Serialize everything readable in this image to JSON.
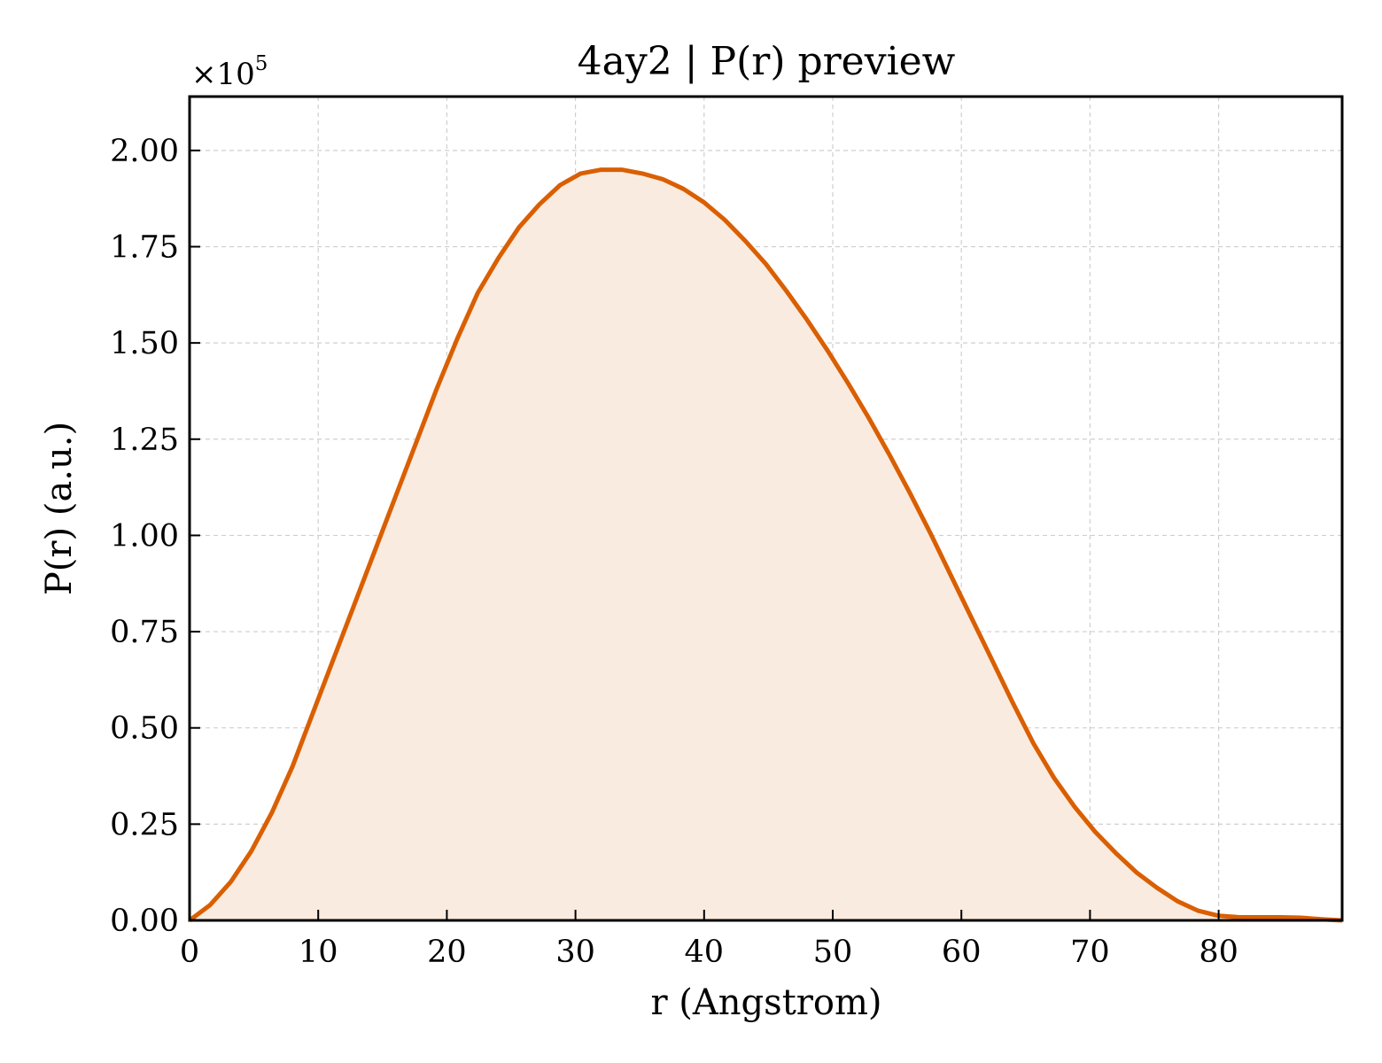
{
  "chart_data": {
    "type": "area",
    "title": "4ay2 | P(r) preview",
    "xlabel": "r (Angstrom)",
    "ylabel": "P(r) (a.u.)",
    "y_offset_prefix": "×10",
    "y_offset_exponent": "5",
    "y_multiplier": 100000,
    "xlim": [
      0,
      89.6
    ],
    "ylim": [
      0,
      2.14
    ],
    "x_ticks": [
      0,
      10,
      20,
      30,
      40,
      50,
      60,
      70,
      80
    ],
    "x_tick_labels": [
      "0",
      "10",
      "20",
      "30",
      "40",
      "50",
      "60",
      "70",
      "80"
    ],
    "y_ticks": [
      0,
      0.25,
      0.5,
      0.75,
      1.0,
      1.25,
      1.5,
      1.75,
      2.0
    ],
    "y_tick_labels": [
      "0.00",
      "0.25",
      "0.50",
      "0.75",
      "1.00",
      "1.25",
      "1.50",
      "1.75",
      "2.00"
    ],
    "grid": true,
    "line_color": "#d95f02",
    "fill_color": "#faebe0",
    "series": [
      {
        "x": [
          0,
          1.6,
          3.2,
          4.8,
          6.4,
          8.0,
          9.6,
          11.2,
          12.8,
          14.4,
          16.0,
          17.6,
          19.2,
          20.8,
          22.4,
          24.0,
          25.6,
          27.2,
          28.8,
          30.4,
          32.0,
          33.6,
          35.2,
          36.8,
          38.4,
          40.0,
          41.6,
          43.2,
          44.8,
          46.4,
          48.0,
          49.6,
          51.2,
          52.8,
          54.4,
          56.0,
          57.6,
          59.2,
          60.8,
          62.4,
          64.0,
          65.6,
          67.2,
          68.8,
          70.4,
          72.0,
          73.6,
          75.2,
          76.8,
          78.4,
          80.0,
          81.6,
          83.2,
          84.8,
          86.4,
          88.0,
          89.6
        ],
        "y": [
          0.0,
          0.04,
          0.1,
          0.18,
          0.28,
          0.4,
          0.54,
          0.68,
          0.82,
          0.96,
          1.1,
          1.24,
          1.38,
          1.51,
          1.63,
          1.72,
          1.8,
          1.86,
          1.91,
          1.94,
          1.95,
          1.95,
          1.94,
          1.925,
          1.9,
          1.865,
          1.82,
          1.765,
          1.705,
          1.635,
          1.56,
          1.48,
          1.395,
          1.305,
          1.21,
          1.11,
          1.005,
          0.895,
          0.785,
          0.675,
          0.565,
          0.46,
          0.37,
          0.295,
          0.23,
          0.175,
          0.125,
          0.085,
          0.05,
          0.025,
          0.012,
          0.008,
          0.008,
          0.008,
          0.007,
          0.003,
          0.0
        ]
      }
    ]
  }
}
